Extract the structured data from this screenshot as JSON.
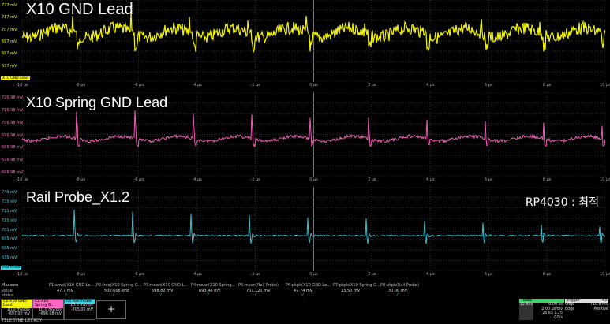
{
  "panels": [
    {
      "title": "X10 GND Lead",
      "color": "#f5f500",
      "y_ticks": [
        "727 mV",
        "717 mV",
        "707 mV",
        "697 mV",
        "687 mV",
        "677 mV",
        "667 mV"
      ],
      "x_ticks": [
        "-10 µs",
        "-8 µs",
        "-6 µs",
        "-4 µs",
        "-2 µs",
        "0 µs",
        "2 µs",
        "4 µs",
        "6 µs",
        "8 µs",
        "10 µs"
      ],
      "tag": "X10 GND Lead"
    },
    {
      "title": "X10 Spring GND Lead",
      "color": "#ff66c4",
      "y_ticks": [
        "726.98 mV",
        "716.98 mV",
        "706.98 mV",
        "696.98 mV",
        "686.98 mV",
        "676.98 mV",
        "666.98 mV"
      ],
      "x_ticks": [
        "-10 µs",
        "-8 µs",
        "-6 µs",
        "-4 µs",
        "-2 µs",
        "0 µs",
        "2 µs",
        "4 µs",
        "6 µs",
        "8 µs",
        "10 µs"
      ],
      "tag": ""
    },
    {
      "title": "Rail Probe_X1.2",
      "color": "#35d6e6",
      "y_ticks": [
        "745 mV",
        "735 mV",
        "725 mV",
        "715 mV",
        "705 mV",
        "695 mV",
        "685 mV",
        "675 mV",
        "665 mV"
      ],
      "x_ticks": [
        "-10 µs",
        "-8 µs",
        "-6 µs",
        "-4 µs",
        "-2 µs",
        "0 µs",
        "2 µs",
        "4 µs",
        "6 µs",
        "8 µs",
        "10 µs"
      ],
      "tag": "Rail Probe"
    }
  ],
  "note": "RP4030 : 최적",
  "measure": {
    "header": "Measure",
    "row_value": "value",
    "row_status": "status",
    "cols": [
      {
        "name": "P1:ampl(X10 GND Le...",
        "value": "47.7 mV"
      },
      {
        "name": "P2:freq(X10 Spring G...",
        "value": "500.606 kHz"
      },
      {
        "name": "P3:mean(X10 GND L...",
        "value": "698.82 mV"
      },
      {
        "name": "P4:mean(X10 Spring...",
        "value": "693.46 mV"
      },
      {
        "name": "P5:mean(Rail Probe)",
        "value": "701.121 mV"
      },
      {
        "name": "P6:pkpk(X10 GND Le...",
        "value": "47.74 mV"
      },
      {
        "name": "P7:pkpk(X10 Spring G...",
        "value": "33.50 mV"
      },
      {
        "name": "P8:pkpk(Rail Probe)",
        "value": "30.00 mV"
      }
    ]
  },
  "channels": [
    {
      "id": "C1",
      "hd": "X10 GND Lead",
      "scale": "10.0 mV/div",
      "offset": "-697.00 mV",
      "color": "#f5f500"
    },
    {
      "id": "C2",
      "hd": "X10 Spring G...",
      "scale": "10.0 mV/div",
      "offset": "-696.98 mV",
      "color": "#ff66c4"
    },
    {
      "id": "C3",
      "hd": "Rail Probe",
      "scale": "10.0 mV/div",
      "offset": "-705.00 mV",
      "color": "#35d6e6"
    }
  ],
  "add_label": "+",
  "brand": "TELEDYNE LECROY",
  "timebase": {
    "label": "Tbase",
    "delay": "0.00 µs",
    "scale": "2.00 µs/div",
    "samples": "25 kS",
    "rate": "1.25 GS/s",
    "bits": "12 Bits"
  },
  "trigger": {
    "label": "Trigger",
    "mode": "Stop",
    "level": "710.8 mV",
    "type": "Edge",
    "slope": "Positive",
    "count": "43"
  }
}
